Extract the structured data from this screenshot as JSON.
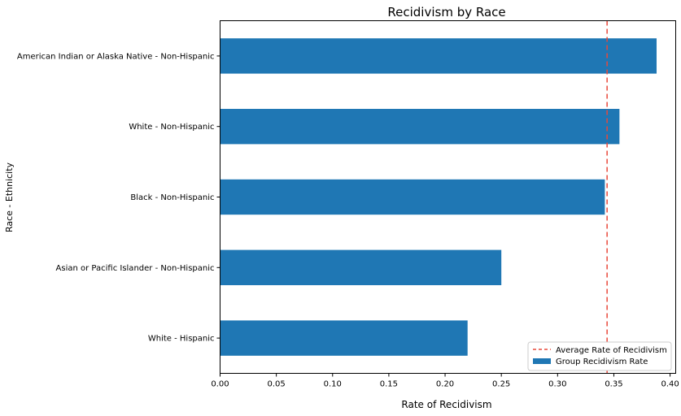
{
  "chart_data": {
    "type": "bar",
    "orientation": "horizontal",
    "title": "Recidivism by Race",
    "xlabel": "Rate of Recidivism",
    "ylabel": "Race - Ethnicity",
    "categories": [
      "White - Hispanic",
      "Asian or Pacific Islander - Non-Hispanic",
      "Black - Non-Hispanic",
      "White - Non-Hispanic",
      "American Indian or Alaska Native - Non-Hispanic"
    ],
    "series": [
      {
        "name": "Group Recidivism Rate",
        "values": [
          0.22,
          0.25,
          0.342,
          0.355,
          0.388
        ]
      }
    ],
    "reference_line": {
      "name": "Average Rate of Recidivism",
      "value": 0.344,
      "style": "dashed"
    },
    "xlim": [
      0.0,
      0.405
    ],
    "xticks": [
      "0.00",
      "0.05",
      "0.10",
      "0.15",
      "0.20",
      "0.25",
      "0.30",
      "0.35",
      "0.40"
    ],
    "grid": false,
    "legend_position": "lower-right",
    "colors": {
      "bar": "#1f77b4",
      "reference_line": "#e8483a"
    }
  }
}
